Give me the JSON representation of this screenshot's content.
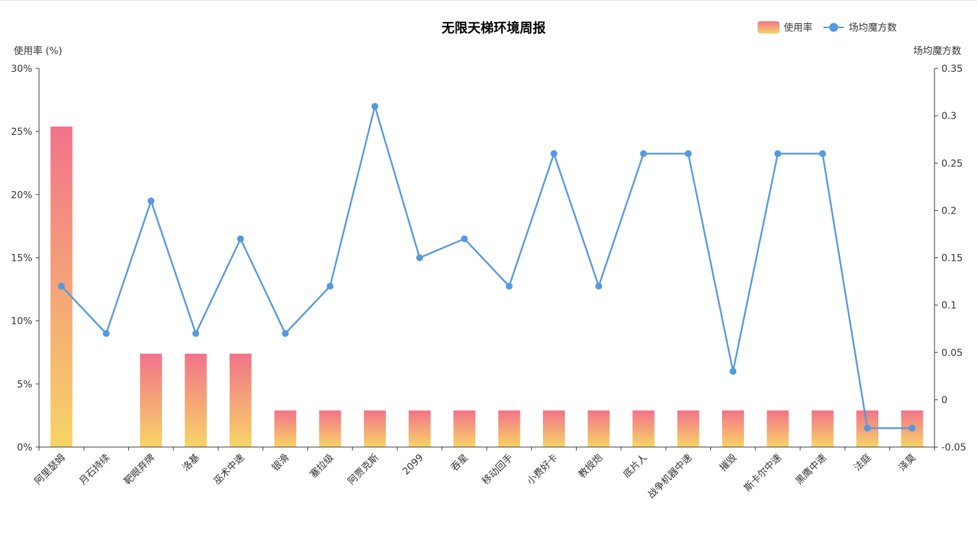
{
  "chart_data": {
    "type": "bar",
    "title": "无限天梯环境周报",
    "categories": [
      "阿里瑟姆",
      "月石持续",
      "靶眼弃牌",
      "洛基",
      "巫术中速",
      "银滑",
      "塞拉级",
      "阿贾克斯",
      "2099",
      "吞星",
      "移动回手",
      "小费好卡",
      "教授炮",
      "底片人",
      "战争机器中速",
      "摧毁",
      "斯卡尔中速",
      "黑鹰中速",
      "法庭",
      "泽莫"
    ],
    "y_left": {
      "label": "使用率 (%)",
      "range": [
        0,
        30
      ],
      "ticks": [
        "0%",
        "5%",
        "10%",
        "15%",
        "20%",
        "25%",
        "30%"
      ],
      "tick_values": [
        0,
        5,
        10,
        15,
        20,
        25,
        30
      ]
    },
    "y_right": {
      "label": "场均魔方数",
      "range": [
        -0.05,
        0.35
      ],
      "ticks": [
        "-0.05",
        "0",
        "0.05",
        "0.1",
        "0.15",
        "0.2",
        "0.25",
        "0.3",
        "0.35"
      ],
      "tick_values": [
        -0.05,
        0,
        0.05,
        0.1,
        0.15,
        0.2,
        0.25,
        0.3,
        0.35
      ]
    },
    "series": [
      {
        "name": "使用率",
        "type": "bar",
        "axis": "left",
        "values": [
          25.4,
          0,
          7.4,
          7.4,
          7.4,
          2.9,
          2.9,
          2.9,
          2.9,
          2.9,
          2.9,
          2.9,
          2.9,
          2.9,
          2.9,
          2.9,
          2.9,
          2.9,
          2.9,
          2.9
        ]
      },
      {
        "name": "场均魔方数",
        "type": "line",
        "axis": "right",
        "values": [
          0.12,
          0.07,
          0.21,
          0.07,
          0.17,
          0.07,
          0.12,
          0.31,
          0.15,
          0.17,
          0.12,
          0.26,
          0.12,
          0.26,
          0.26,
          0.03,
          0.26,
          0.26,
          -0.03,
          -0.03
        ]
      }
    ],
    "legend": {
      "position": "top-right",
      "items": [
        "使用率",
        "场均魔方数"
      ]
    },
    "grid": false,
    "colors": {
      "bar_top": "#f2738a",
      "bar_bottom": "#f7d466",
      "line": "#5599e0",
      "axis": "#333333"
    }
  }
}
